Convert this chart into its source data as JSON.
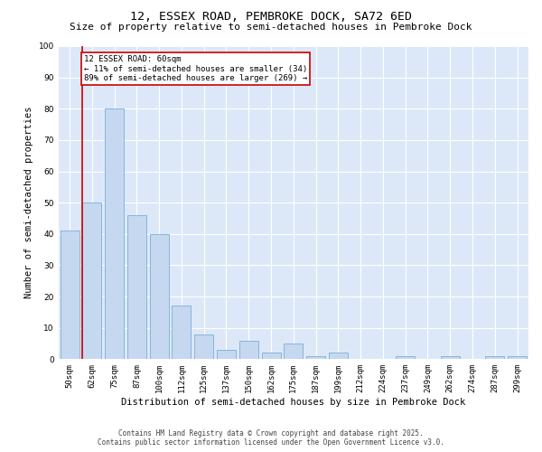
{
  "title": "12, ESSEX ROAD, PEMBROKE DOCK, SA72 6ED",
  "subtitle": "Size of property relative to semi-detached houses in Pembroke Dock",
  "xlabel": "Distribution of semi-detached houses by size in Pembroke Dock",
  "ylabel": "Number of semi-detached properties",
  "categories": [
    "50sqm",
    "62sqm",
    "75sqm",
    "87sqm",
    "100sqm",
    "112sqm",
    "125sqm",
    "137sqm",
    "150sqm",
    "162sqm",
    "175sqm",
    "187sqm",
    "199sqm",
    "212sqm",
    "224sqm",
    "237sqm",
    "249sqm",
    "262sqm",
    "274sqm",
    "287sqm",
    "299sqm"
  ],
  "values": [
    41,
    50,
    80,
    46,
    40,
    17,
    8,
    3,
    6,
    2,
    5,
    1,
    2,
    0,
    0,
    1,
    0,
    1,
    0,
    1,
    1
  ],
  "bar_color": "#c5d8f0",
  "bar_edge_color": "#7bafd4",
  "marker_label": "12 ESSEX ROAD: 60sqm",
  "marker_pct_smaller": "11% of semi-detached houses are smaller (34)",
  "marker_pct_larger": "89% of semi-detached houses are larger (269)",
  "marker_line_color": "#cc0000",
  "annotation_box_edge_color": "#cc0000",
  "ylim": [
    0,
    100
  ],
  "yticks": [
    0,
    10,
    20,
    30,
    40,
    50,
    60,
    70,
    80,
    90,
    100
  ],
  "background_color": "#dce8f8",
  "grid_color": "#ffffff",
  "footer_line1": "Contains HM Land Registry data © Crown copyright and database right 2025.",
  "footer_line2": "Contains public sector information licensed under the Open Government Licence v3.0.",
  "title_fontsize": 9.5,
  "subtitle_fontsize": 8.0,
  "xlabel_fontsize": 7.5,
  "ylabel_fontsize": 7.5,
  "tick_fontsize": 6.5,
  "annot_fontsize": 6.5,
  "footer_fontsize": 5.5
}
